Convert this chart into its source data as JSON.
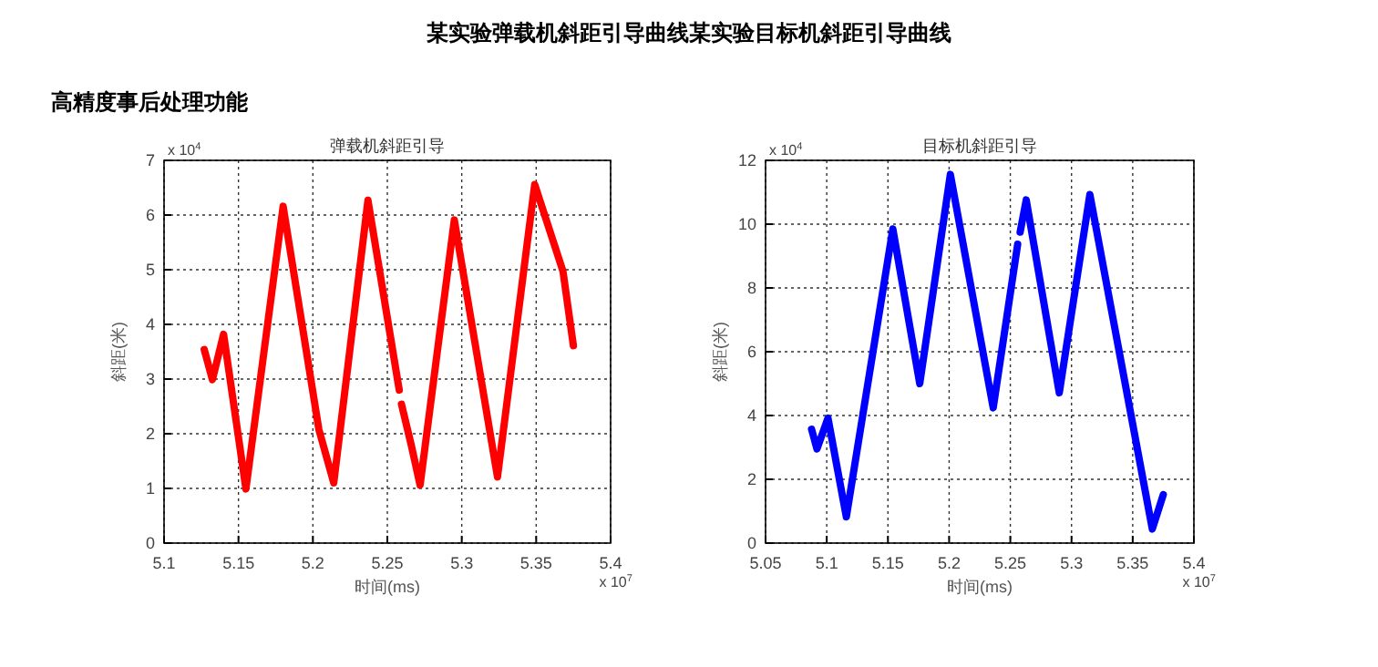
{
  "chart_data": [
    {
      "type": "other",
      "title": "某实验弹载机斜距引导曲线某实验目标机斜距引导曲线",
      "subtitle": "高精度事后处理功能"
    },
    {
      "type": "line",
      "title": "弹载机斜距引导",
      "xlabel": "时间(ms)",
      "ylabel": "斜距(米)",
      "annotations": [
        "x 10$^{4}$",
        "x 10$^{7}$"
      ],
      "grid": true,
      "line_style": "solid",
      "xlim": [
        5.1,
        5.4
      ],
      "ylim": [
        0,
        7
      ],
      "xticks": [
        5.1,
        5.15,
        5.2,
        5.25,
        5.3,
        5.35,
        5.4
      ],
      "yticks": [
        0,
        1,
        2,
        3,
        4,
        5,
        6,
        7
      ],
      "series": [
        {
          "color": "#ff0000",
          "x": [
            5.127,
            5.1325,
            5.14,
            5.155,
            5.18,
            5.204,
            5.214,
            5.237,
            5.258,
            5.2585,
            5.2595,
            5.266,
            5.272,
            5.295,
            5.324,
            5.349,
            5.368,
            5.375
          ],
          "values": [
            3.54,
            2.99,
            3.82,
            0.99,
            6.16,
            2.08,
            1.1,
            6.27,
            2.8,
            null,
            2.54,
            1.8,
            1.06,
            5.91,
            1.21,
            6.56,
            4.97,
            3.61
          ]
        }
      ]
    },
    {
      "type": "line",
      "title": "目标机斜距引导",
      "xlabel": "时间(ms)",
      "ylabel": "斜距(米)",
      "annotations": [
        "x 10$^{4}$",
        "x 10$^{7}$"
      ],
      "grid": true,
      "line_style": "solid",
      "xlim": [
        5.05,
        5.4
      ],
      "ylim": [
        0,
        12
      ],
      "xticks": [
        5.05,
        5.1,
        5.15,
        5.2,
        5.25,
        5.3,
        5.35,
        5.4
      ],
      "yticks": [
        0,
        2,
        4,
        6,
        8,
        10,
        12
      ],
      "series": [
        {
          "color": "#0000ff",
          "x": [
            5.0876,
            5.092,
            5.101,
            5.116,
            5.154,
            5.176,
            5.201,
            5.236,
            5.256,
            5.257,
            5.258,
            5.263,
            5.29,
            5.315,
            5.366,
            5.375
          ],
          "values": [
            3.57,
            2.95,
            3.92,
            0.82,
            9.85,
            5.0,
            11.56,
            4.24,
            9.37,
            null,
            9.75,
            10.76,
            4.71,
            10.93,
            0.44,
            1.52
          ]
        }
      ]
    }
  ]
}
